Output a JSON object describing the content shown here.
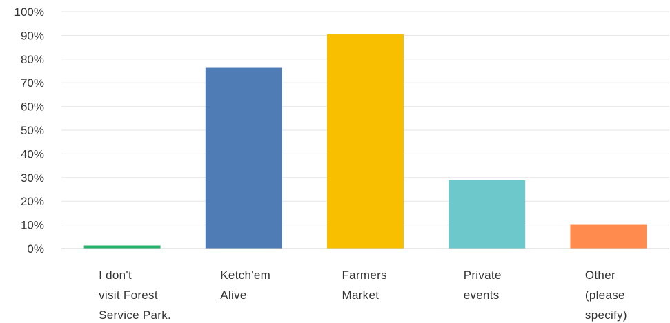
{
  "chart_data": {
    "type": "bar",
    "title": "",
    "xlabel": "",
    "ylabel": "",
    "categories": [
      [
        "I don't",
        "visit Forest",
        "Service Park."
      ],
      [
        "Ketch'em",
        "Alive"
      ],
      [
        "Farmers",
        "Market"
      ],
      [
        "Private",
        "events"
      ],
      [
        "Other",
        "(please",
        "specify)"
      ]
    ],
    "values": [
      1.3,
      76.3,
      90.4,
      28.8,
      10.3
    ],
    "colors": [
      "#25b36b",
      "#507cb6",
      "#f7bf00",
      "#6dc8cc",
      "#ff8b4f"
    ],
    "ylim": [
      0,
      100
    ],
    "yticks": [
      "0%",
      "10%",
      "20%",
      "30%",
      "40%",
      "50%",
      "60%",
      "70%",
      "80%",
      "90%",
      "100%"
    ],
    "grid": true,
    "legend": "none"
  }
}
